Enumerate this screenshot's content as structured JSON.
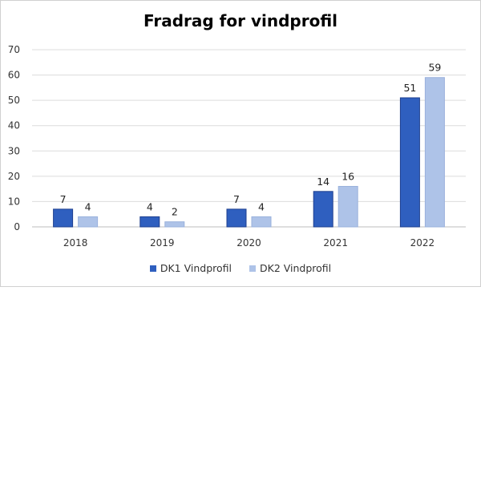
{
  "chart_data": {
    "type": "bar",
    "title": "Fradrag for vindprofil",
    "categories": [
      "2018",
      "2019",
      "2020",
      "2021",
      "2022"
    ],
    "series": [
      {
        "name": "DK1 Vindprofil",
        "values": [
          7,
          4,
          7,
          14,
          51
        ],
        "color": "#2f5fbf"
      },
      {
        "name": "DK2 Vindprofil",
        "values": [
          4,
          2,
          4,
          16,
          59
        ],
        "color": "#aec3e8"
      }
    ],
    "yticks": [
      0,
      10,
      20,
      30,
      40,
      50,
      60,
      70
    ],
    "ylim": [
      0,
      70
    ],
    "xlabel": "",
    "ylabel": "",
    "grid": true,
    "legend": "bottom"
  }
}
